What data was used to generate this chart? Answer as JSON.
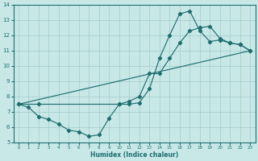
{
  "xlabel": "Humidex (Indice chaleur)",
  "xlim": [
    -0.5,
    23.5
  ],
  "ylim": [
    5,
    14
  ],
  "xticks": [
    0,
    1,
    2,
    3,
    4,
    5,
    6,
    7,
    8,
    9,
    10,
    11,
    12,
    13,
    14,
    15,
    16,
    17,
    18,
    19,
    20,
    21,
    22,
    23
  ],
  "yticks": [
    5,
    6,
    7,
    8,
    9,
    10,
    11,
    12,
    13,
    14
  ],
  "bg_color": "#c8e8e8",
  "line_color": "#1e6e6e",
  "grid_color": "#a8cece",
  "line1_x": [
    0,
    1,
    2,
    3,
    4,
    5,
    6,
    7,
    8,
    9,
    10,
    11,
    12,
    13,
    14,
    15,
    16,
    17,
    18,
    19,
    20,
    21,
    22,
    23
  ],
  "line1_y": [
    7.5,
    7.3,
    6.7,
    6.5,
    6.2,
    5.8,
    5.7,
    5.4,
    5.5,
    6.6,
    7.5,
    7.5,
    7.6,
    8.5,
    10.5,
    12.0,
    13.4,
    13.6,
    12.3,
    11.6,
    11.7,
    11.5,
    11.4,
    11.0
  ],
  "line2_x": [
    0,
    2,
    10,
    11,
    12,
    13,
    14,
    15,
    16,
    17,
    18,
    19,
    20,
    21,
    22,
    23
  ],
  "line2_y": [
    7.5,
    7.5,
    7.5,
    7.7,
    8.0,
    9.5,
    9.5,
    10.5,
    11.5,
    12.3,
    12.5,
    12.6,
    11.8,
    11.5,
    11.4,
    11.0
  ],
  "line3_x": [
    0,
    23
  ],
  "line3_y": [
    7.5,
    11.0
  ]
}
